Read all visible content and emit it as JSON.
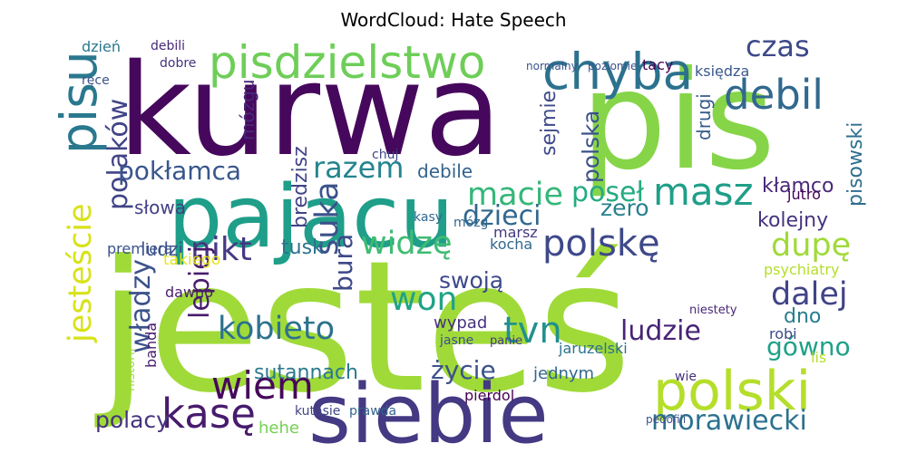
{
  "chart_data": {
    "type": "wordcloud",
    "title": "WordCloud: Hate Speech",
    "words": [
      {
        "text": "jesteś",
        "weight": 200,
        "color": "#a0da39"
      },
      {
        "text": "kurwa",
        "weight": 140,
        "color": "#46085c"
      },
      {
        "text": "pis",
        "weight": 150,
        "color": "#86d549"
      },
      {
        "text": "pajacu",
        "weight": 95,
        "color": "#1f9e89"
      },
      {
        "text": "siebie",
        "weight": 90,
        "color": "#443983"
      },
      {
        "text": "polski",
        "weight": 60,
        "color": "#b5de2b"
      },
      {
        "text": "pisdzielstwo",
        "weight": 50,
        "color": "#6ece58"
      },
      {
        "text": "chyba",
        "weight": 55,
        "color": "#2c728e"
      },
      {
        "text": "pisu",
        "weight": 55,
        "color": "#2a788e"
      },
      {
        "text": "debil",
        "weight": 45,
        "color": "#31688e"
      },
      {
        "text": "czas",
        "weight": 32,
        "color": "#3e4989"
      },
      {
        "text": "polaków",
        "weight": 30,
        "color": "#414487"
      },
      {
        "text": "jesteście",
        "weight": 35,
        "color": "#d8e219"
      },
      {
        "text": "pokłamca",
        "weight": 28,
        "color": "#39568c"
      },
      {
        "text": "razem",
        "weight": 32,
        "color": "#25848e"
      },
      {
        "text": "mózgu",
        "weight": 20,
        "color": "#482878"
      },
      {
        "text": "bredzisz",
        "weight": 22,
        "color": "#414487"
      },
      {
        "text": "suka",
        "weight": 35,
        "color": "#3b528b"
      },
      {
        "text": "macie",
        "weight": 35,
        "color": "#35b779"
      },
      {
        "text": "poseł",
        "weight": 30,
        "color": "#25ab82"
      },
      {
        "text": "masz",
        "weight": 42,
        "color": "#1f9e89"
      },
      {
        "text": "dzieci",
        "weight": 30,
        "color": "#31688e"
      },
      {
        "text": "polskę",
        "weight": 40,
        "color": "#3e4989"
      },
      {
        "text": "nikt",
        "weight": 36,
        "color": "#443983"
      },
      {
        "text": "widzę",
        "weight": 35,
        "color": "#3fbc73"
      },
      {
        "text": "tusk",
        "weight": 22,
        "color": "#2c728e"
      },
      {
        "text": "dupę",
        "weight": 35,
        "color": "#a0da39"
      },
      {
        "text": "won",
        "weight": 36,
        "color": "#20a386"
      },
      {
        "text": "dalej",
        "weight": 35,
        "color": "#414487"
      },
      {
        "text": "kobieto",
        "weight": 35,
        "color": "#2c728e"
      },
      {
        "text": "tvn",
        "weight": 40,
        "color": "#21918c"
      },
      {
        "text": "ludzie",
        "weight": 30,
        "color": "#482475"
      },
      {
        "text": "władzy",
        "weight": 30,
        "color": "#3b528b"
      },
      {
        "text": "lepiej",
        "weight": 30,
        "color": "#481b6d"
      },
      {
        "text": "gówno",
        "weight": 28,
        "color": "#1fa187"
      },
      {
        "text": "życie",
        "weight": 28,
        "color": "#3b528b"
      },
      {
        "text": "wiem",
        "weight": 42,
        "color": "#46085c"
      },
      {
        "text": "kasę",
        "weight": 45,
        "color": "#481b6d"
      },
      {
        "text": "polacy",
        "weight": 25,
        "color": "#46337e"
      },
      {
        "text": "sutannach",
        "weight": 22,
        "color": "#2a788e"
      },
      {
        "text": "morawiecki",
        "weight": 30,
        "color": "#2c728e"
      },
      {
        "text": "hehe",
        "weight": 18,
        "color": "#75d054"
      },
      {
        "text": "sejmie",
        "weight": 22,
        "color": "#3e4989"
      },
      {
        "text": "polska",
        "weight": 25,
        "color": "#3b528b"
      },
      {
        "text": "drugi",
        "weight": 20,
        "color": "#365c8d"
      },
      {
        "text": "kłamco",
        "weight": 22,
        "color": "#482878"
      },
      {
        "text": "pisowski",
        "weight": 22,
        "color": "#2e6e8e"
      },
      {
        "text": "zero",
        "weight": 25,
        "color": "#27808e"
      },
      {
        "text": "kolejny",
        "weight": 22,
        "color": "#46337e"
      },
      {
        "text": "debile",
        "weight": 20,
        "color": "#33638d"
      },
      {
        "text": "słowa",
        "weight": 20,
        "color": "#424086"
      },
      {
        "text": "ludzi",
        "weight": 20,
        "color": "#3b528b"
      },
      {
        "text": "takiego",
        "weight": 17,
        "color": "#e5e419"
      },
      {
        "text": "swoją",
        "weight": 25,
        "color": "#3e4989"
      },
      {
        "text": "dno",
        "weight": 22,
        "color": "#287d8e"
      },
      {
        "text": "bura",
        "weight": 28,
        "color": "#3e4989"
      },
      {
        "text": "jutro",
        "weight": 16,
        "color": "#440154"
      },
      {
        "text": "psychiatry",
        "weight": 16,
        "color": "#b5de2b"
      },
      {
        "text": "dzień",
        "weight": 16,
        "color": "#2a788e"
      },
      {
        "text": "debili",
        "weight": 14,
        "color": "#482878"
      },
      {
        "text": "ręce",
        "weight": 14,
        "color": "#3b528b"
      },
      {
        "text": "dobre",
        "weight": 14,
        "color": "#46337e"
      },
      {
        "text": "księdza",
        "weight": 16,
        "color": "#39568c"
      },
      {
        "text": "jednym",
        "weight": 18,
        "color": "#31688e"
      },
      {
        "text": "pierdol",
        "weight": 16,
        "color": "#440154"
      },
      {
        "text": "wypad",
        "weight": 18,
        "color": "#46337e"
      },
      {
        "text": "jasne",
        "weight": 14,
        "color": "#3b528b"
      },
      {
        "text": "prawda",
        "weight": 14,
        "color": "#33638d"
      },
      {
        "text": "kutasie",
        "weight": 14,
        "color": "#414487"
      },
      {
        "text": "historii",
        "weight": 14,
        "color": "#a0da39"
      },
      {
        "text": "jaruzelski",
        "weight": 16,
        "color": "#2c728e"
      },
      {
        "text": "wie",
        "weight": 14,
        "color": "#46337e"
      },
      {
        "text": "robi",
        "weight": 16,
        "color": "#3e4989"
      },
      {
        "text": "lis",
        "weight": 16,
        "color": "#b5de2b"
      },
      {
        "text": "niestety",
        "weight": 13,
        "color": "#482878"
      },
      {
        "text": "dawno",
        "weight": 16,
        "color": "#481b6d"
      },
      {
        "text": "kocha",
        "weight": 16,
        "color": "#31688e"
      },
      {
        "text": "marsz",
        "weight": 16,
        "color": "#443983"
      },
      {
        "text": "kasy",
        "weight": 14,
        "color": "#31688e"
      },
      {
        "text": "chuj",
        "weight": 14,
        "color": "#3e4989"
      },
      {
        "text": "tacy",
        "weight": 16,
        "color": "#440154"
      },
      {
        "text": "normalny",
        "weight": 12,
        "color": "#3b528b"
      },
      {
        "text": "poziomie",
        "weight": 12,
        "color": "#3b528b"
      },
      {
        "text": "pedofili",
        "weight": 12,
        "color": "#3b528b"
      },
      {
        "text": "panie",
        "weight": 13,
        "color": "#443983"
      },
      {
        "text": "banda",
        "weight": 16,
        "color": "#481b6d"
      },
      {
        "text": "premiera",
        "weight": 16,
        "color": "#3b528b"
      },
      {
        "text": "mózg",
        "weight": 14,
        "color": "#31688e"
      }
    ]
  }
}
